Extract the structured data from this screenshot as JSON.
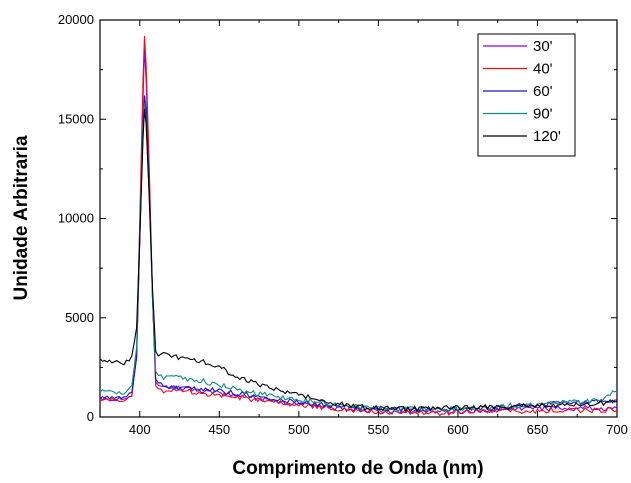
{
  "chart_data": {
    "type": "line",
    "title": "",
    "xlabel": "Comprimento de Onda (nm)",
    "ylabel": "Unidade Arbitraria",
    "xlim": [
      375,
      700
    ],
    "ylim": [
      0,
      20000
    ],
    "x_ticks": [
      400,
      450,
      500,
      550,
      600,
      650,
      700
    ],
    "y_ticks": [
      0,
      5000,
      10000,
      15000,
      20000
    ],
    "grid": false,
    "legend_position": "top-right",
    "x": [
      375,
      390,
      395,
      398,
      400,
      402,
      403,
      404,
      406,
      408,
      410,
      415,
      420,
      430,
      440,
      450,
      460,
      470,
      480,
      490,
      500,
      510,
      520,
      530,
      540,
      550,
      560,
      570,
      580,
      590,
      600,
      610,
      620,
      630,
      640,
      650,
      660,
      670,
      680,
      690,
      700
    ],
    "series": [
      {
        "name": "30'",
        "color": "#8a00e6",
        "values": [
          900,
          900,
          1100,
          3000,
          9000,
          16000,
          18600,
          17000,
          12000,
          6000,
          1800,
          1500,
          1500,
          1400,
          1300,
          1200,
          1100,
          1000,
          850,
          750,
          650,
          550,
          500,
          400,
          350,
          300,
          250,
          250,
          250,
          250,
          300,
          300,
          350,
          350,
          400,
          400,
          450,
          450,
          450,
          450,
          450
        ]
      },
      {
        "name": "40'",
        "color": "#e8101a",
        "values": [
          850,
          850,
          1100,
          3200,
          10000,
          17000,
          19200,
          17800,
          12500,
          6200,
          1600,
          1300,
          1400,
          1300,
          1200,
          1100,
          1000,
          900,
          800,
          700,
          600,
          500,
          450,
          350,
          300,
          250,
          200,
          200,
          200,
          200,
          250,
          250,
          250,
          300,
          300,
          300,
          350,
          350,
          350,
          350,
          350
        ]
      },
      {
        "name": "60'",
        "color": "#1a14c8",
        "values": [
          1000,
          1000,
          1200,
          3000,
          9000,
          14500,
          16200,
          15500,
          11500,
          6000,
          1800,
          1600,
          1500,
          1500,
          1400,
          1300,
          1200,
          1100,
          950,
          850,
          750,
          650,
          550,
          500,
          450,
          450,
          400,
          400,
          400,
          400,
          400,
          450,
          450,
          500,
          550,
          600,
          650,
          700,
          750,
          800,
          850
        ]
      },
      {
        "name": "90'",
        "color": "#108a80",
        "values": [
          1300,
          1200,
          1500,
          3500,
          9500,
          14500,
          15800,
          15000,
          11000,
          6000,
          2300,
          2000,
          2000,
          1900,
          1800,
          1600,
          1400,
          1250,
          1100,
          1000,
          900,
          750,
          650,
          550,
          500,
          450,
          400,
          400,
          400,
          400,
          450,
          450,
          500,
          550,
          600,
          650,
          700,
          750,
          800,
          900,
          1300
        ]
      },
      {
        "name": "120'",
        "color": "#000000",
        "values": [
          2900,
          2700,
          3000,
          4500,
          9000,
          14000,
          15500,
          14800,
          11000,
          6500,
          3200,
          3200,
          3100,
          2900,
          2800,
          2500,
          2100,
          1800,
          1500,
          1300,
          1100,
          900,
          750,
          600,
          500,
          450,
          400,
          400,
          450,
          450,
          450,
          450,
          500,
          500,
          550,
          600,
          600,
          650,
          650,
          700,
          800
        ]
      }
    ]
  }
}
